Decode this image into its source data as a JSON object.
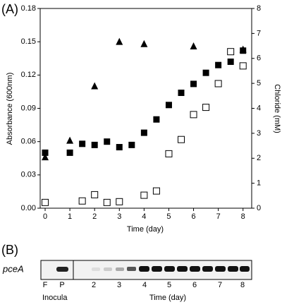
{
  "chart_data": {
    "type": "scatter",
    "panel_label": "(A)",
    "xlabel": "Time (day)",
    "ylabel": "Absorbance (600nm)",
    "y2label": "Chloride (mM)",
    "xlim": [
      -0.2,
      8.35
    ],
    "xticks": [
      0,
      1,
      2,
      3,
      4,
      5,
      6,
      7,
      8
    ],
    "ylim": [
      0,
      0.18
    ],
    "yticks": [
      {
        "value": 0,
        "label": "0.00"
      },
      {
        "value": 0.03,
        "label": "0.03"
      },
      {
        "value": 0.06,
        "label": "0.06"
      },
      {
        "value": 0.09,
        "label": "0.09"
      },
      {
        "value": 0.12,
        "label": "0.12"
      },
      {
        "value": 0.15,
        "label": "0.15"
      },
      {
        "value": 0.18,
        "label": "0.18"
      }
    ],
    "y2lim": [
      0,
      8
    ],
    "y2ticks": [
      0,
      1,
      2,
      3,
      4,
      5,
      6,
      7,
      8
    ],
    "series": [
      {
        "marker": "square",
        "color": "#000000",
        "x": [
          0,
          1,
          1.5,
          2,
          2.5,
          3,
          3.5,
          4,
          4.5,
          5,
          5.5,
          6,
          6.5,
          7,
          7.5,
          8
        ],
        "values": [
          0.05,
          0.05,
          0.058,
          0.057,
          0.06,
          0.055,
          0.057,
          0.068,
          0.08,
          0.093,
          0.104,
          0.112,
          0.122,
          0.129,
          0.132,
          0.142
        ]
      },
      {
        "marker": "triangle",
        "color": "#000000",
        "x": [
          0,
          1,
          2,
          3,
          4,
          6,
          8
        ],
        "values": [
          0.046,
          0.061,
          0.11,
          0.15,
          0.148,
          0.146,
          0.143
        ]
      },
      {
        "marker": "open-square",
        "color": "#000000",
        "axis": "y2",
        "x": [
          0,
          1.5,
          2,
          2.5,
          3,
          4,
          4.5,
          5,
          5.5,
          6,
          6.5,
          7,
          7.5,
          8
        ],
        "values": [
          0.23,
          0.29,
          0.54,
          0.23,
          0.26,
          0.52,
          0.69,
          2.18,
          2.75,
          3.75,
          4.04,
          4.99,
          6.27,
          5.7
        ]
      }
    ]
  },
  "gel": {
    "panel_label": "(B)",
    "gene": "pceA",
    "lanes": [
      "F",
      "P",
      "2",
      "3",
      "4",
      "5",
      "6",
      "7",
      "8"
    ],
    "inocula_label": "Inocula",
    "time_label": "Time (day)"
  }
}
